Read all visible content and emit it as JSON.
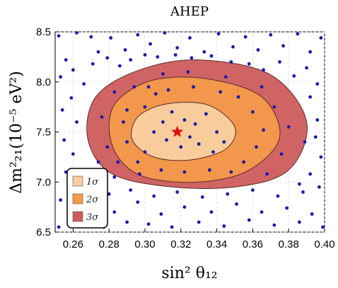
{
  "chart_data": {
    "type": "scatter",
    "title": "AHEP",
    "xlabel": "sin² θ₁₂",
    "ylabel": "Δm²₂₁(10⁻⁵ eV²)",
    "xlim": [
      0.25,
      0.4
    ],
    "ylim": [
      6.5,
      8.5
    ],
    "xticks": [
      "0.26",
      "0.28",
      "0.30",
      "0.32",
      "0.34",
      "0.36",
      "0.38",
      "0.40"
    ],
    "yticks": [
      "6.5",
      "7.0",
      "7.5",
      "8.0",
      "8.5"
    ],
    "grid": true,
    "legend_position": "bottom-left",
    "best_fit": {
      "x": 0.318,
      "y": 7.5,
      "marker": "star",
      "color": "#e01010"
    },
    "regions": [
      {
        "name": "3σ",
        "color": "#cd5c5c",
        "outline": [
          [
            0.273,
            7.86
          ],
          [
            0.297,
            8.12
          ],
          [
            0.33,
            8.22
          ],
          [
            0.37,
            8.07
          ],
          [
            0.39,
            7.6
          ],
          [
            0.38,
            7.12
          ],
          [
            0.35,
            6.95
          ],
          [
            0.31,
            6.96
          ],
          [
            0.28,
            7.1
          ],
          [
            0.268,
            7.45
          ]
        ]
      },
      {
        "name": "2σ",
        "color": "#f39a4a",
        "outline": [
          [
            0.285,
            7.82
          ],
          [
            0.305,
            8.02
          ],
          [
            0.335,
            8.03
          ],
          [
            0.365,
            7.85
          ],
          [
            0.375,
            7.45
          ],
          [
            0.358,
            7.12
          ],
          [
            0.33,
            7.0
          ],
          [
            0.3,
            7.05
          ],
          [
            0.285,
            7.25
          ],
          [
            0.28,
            7.55
          ]
        ]
      },
      {
        "name": "1σ",
        "color": "#f9cfa0",
        "outline": [
          [
            0.296,
            7.65
          ],
          [
            0.312,
            7.78
          ],
          [
            0.335,
            7.77
          ],
          [
            0.35,
            7.55
          ],
          [
            0.345,
            7.33
          ],
          [
            0.325,
            7.22
          ],
          [
            0.305,
            7.25
          ],
          [
            0.293,
            7.42
          ]
        ]
      }
    ],
    "legend": [
      {
        "label": "1σ",
        "color": "#f9cfa0"
      },
      {
        "label": "2σ",
        "color": "#f39a4a"
      },
      {
        "label": "3σ",
        "color": "#cd5c5c"
      }
    ],
    "points_color": "#1a1aa8",
    "points": [
      [
        0.252,
        8.46
      ],
      [
        0.256,
        8.22
      ],
      [
        0.262,
        8.49
      ],
      [
        0.27,
        8.45
      ],
      [
        0.274,
        8.3
      ],
      [
        0.281,
        8.44
      ],
      [
        0.289,
        8.32
      ],
      [
        0.296,
        8.47
      ],
      [
        0.303,
        8.38
      ],
      [
        0.311,
        8.49
      ],
      [
        0.318,
        8.34
      ],
      [
        0.325,
        8.44
      ],
      [
        0.333,
        8.3
      ],
      [
        0.341,
        8.48
      ],
      [
        0.349,
        8.35
      ],
      [
        0.356,
        8.45
      ],
      [
        0.363,
        8.32
      ],
      [
        0.37,
        8.47
      ],
      [
        0.377,
        8.36
      ],
      [
        0.385,
        8.48
      ],
      [
        0.392,
        8.3
      ],
      [
        0.398,
        8.44
      ],
      [
        0.253,
        8.05
      ],
      [
        0.26,
        8.12
      ],
      [
        0.266,
        7.98
      ],
      [
        0.271,
        8.18
      ],
      [
        0.279,
        8.24
      ],
      [
        0.286,
        8.16
      ],
      [
        0.292,
        8.22
      ],
      [
        0.3,
        8.27
      ],
      [
        0.307,
        8.25
      ],
      [
        0.317,
        8.27
      ],
      [
        0.326,
        8.24
      ],
      [
        0.337,
        8.26
      ],
      [
        0.348,
        8.2
      ],
      [
        0.358,
        8.18
      ],
      [
        0.366,
        8.12
      ],
      [
        0.375,
        8.2
      ],
      [
        0.383,
        8.06
      ],
      [
        0.39,
        8.14
      ],
      [
        0.396,
        7.98
      ],
      [
        0.254,
        7.72
      ],
      [
        0.259,
        7.84
      ],
      [
        0.262,
        7.6
      ],
      [
        0.255,
        7.42
      ],
      [
        0.26,
        7.28
      ],
      [
        0.256,
        7.1
      ],
      [
        0.263,
        6.95
      ],
      [
        0.253,
        6.82
      ],
      [
        0.258,
        6.68
      ],
      [
        0.265,
        6.58
      ],
      [
        0.252,
        6.55
      ],
      [
        0.27,
        6.62
      ],
      [
        0.277,
        6.55
      ],
      [
        0.283,
        6.7
      ],
      [
        0.29,
        6.6
      ],
      [
        0.296,
        6.8
      ],
      [
        0.302,
        6.58
      ],
      [
        0.309,
        6.68
      ],
      [
        0.315,
        6.55
      ],
      [
        0.322,
        6.75
      ],
      [
        0.33,
        6.6
      ],
      [
        0.337,
        6.7
      ],
      [
        0.344,
        6.56
      ],
      [
        0.351,
        6.78
      ],
      [
        0.358,
        6.62
      ],
      [
        0.365,
        6.7
      ],
      [
        0.372,
        6.57
      ],
      [
        0.379,
        6.74
      ],
      [
        0.386,
        6.6
      ],
      [
        0.393,
        6.68
      ],
      [
        0.399,
        6.55
      ],
      [
        0.28,
        6.88
      ],
      [
        0.292,
        6.92
      ],
      [
        0.305,
        6.86
      ],
      [
        0.318,
        6.9
      ],
      [
        0.332,
        6.85
      ],
      [
        0.346,
        6.88
      ],
      [
        0.36,
        6.92
      ],
      [
        0.374,
        6.86
      ],
      [
        0.388,
        6.9
      ],
      [
        0.392,
        7.85
      ],
      [
        0.396,
        7.62
      ],
      [
        0.389,
        7.4
      ],
      [
        0.398,
        7.25
      ],
      [
        0.392,
        7.08
      ],
      [
        0.386,
        6.98
      ],
      [
        0.397,
        6.95
      ],
      [
        0.395,
        7.45
      ],
      [
        0.288,
        7.6
      ],
      [
        0.294,
        7.95
      ],
      [
        0.3,
        7.75
      ],
      [
        0.306,
        7.88
      ],
      [
        0.31,
        7.6
      ],
      [
        0.315,
        7.7
      ],
      [
        0.322,
        7.62
      ],
      [
        0.328,
        7.58
      ],
      [
        0.334,
        7.68
      ],
      [
        0.34,
        7.5
      ],
      [
        0.344,
        7.4
      ],
      [
        0.338,
        7.3
      ],
      [
        0.33,
        7.38
      ],
      [
        0.325,
        7.45
      ],
      [
        0.32,
        7.35
      ],
      [
        0.312,
        7.42
      ],
      [
        0.305,
        7.5
      ],
      [
        0.3,
        7.3
      ],
      [
        0.296,
        7.2
      ],
      [
        0.29,
        7.4
      ],
      [
        0.285,
        7.2
      ],
      [
        0.283,
        7.9
      ],
      [
        0.29,
        7.72
      ],
      [
        0.302,
        7.95
      ],
      [
        0.313,
        7.92
      ],
      [
        0.327,
        7.95
      ],
      [
        0.342,
        7.9
      ],
      [
        0.352,
        7.85
      ],
      [
        0.36,
        7.7
      ],
      [
        0.366,
        7.52
      ],
      [
        0.362,
        7.35
      ],
      [
        0.355,
        7.2
      ],
      [
        0.348,
        7.1
      ],
      [
        0.336,
        7.12
      ],
      [
        0.322,
        7.1
      ],
      [
        0.309,
        7.12
      ],
      [
        0.297,
        7.08
      ],
      [
        0.276,
        7.65
      ],
      [
        0.279,
        7.35
      ],
      [
        0.274,
        7.2
      ],
      [
        0.283,
        7.05
      ],
      [
        0.31,
        8.08
      ],
      [
        0.324,
        8.1
      ],
      [
        0.345,
        8.05
      ],
      [
        0.365,
        7.95
      ],
      [
        0.372,
        7.75
      ],
      [
        0.38,
        7.55
      ],
      [
        0.376,
        7.28
      ],
      [
        0.368,
        7.08
      ]
    ]
  }
}
